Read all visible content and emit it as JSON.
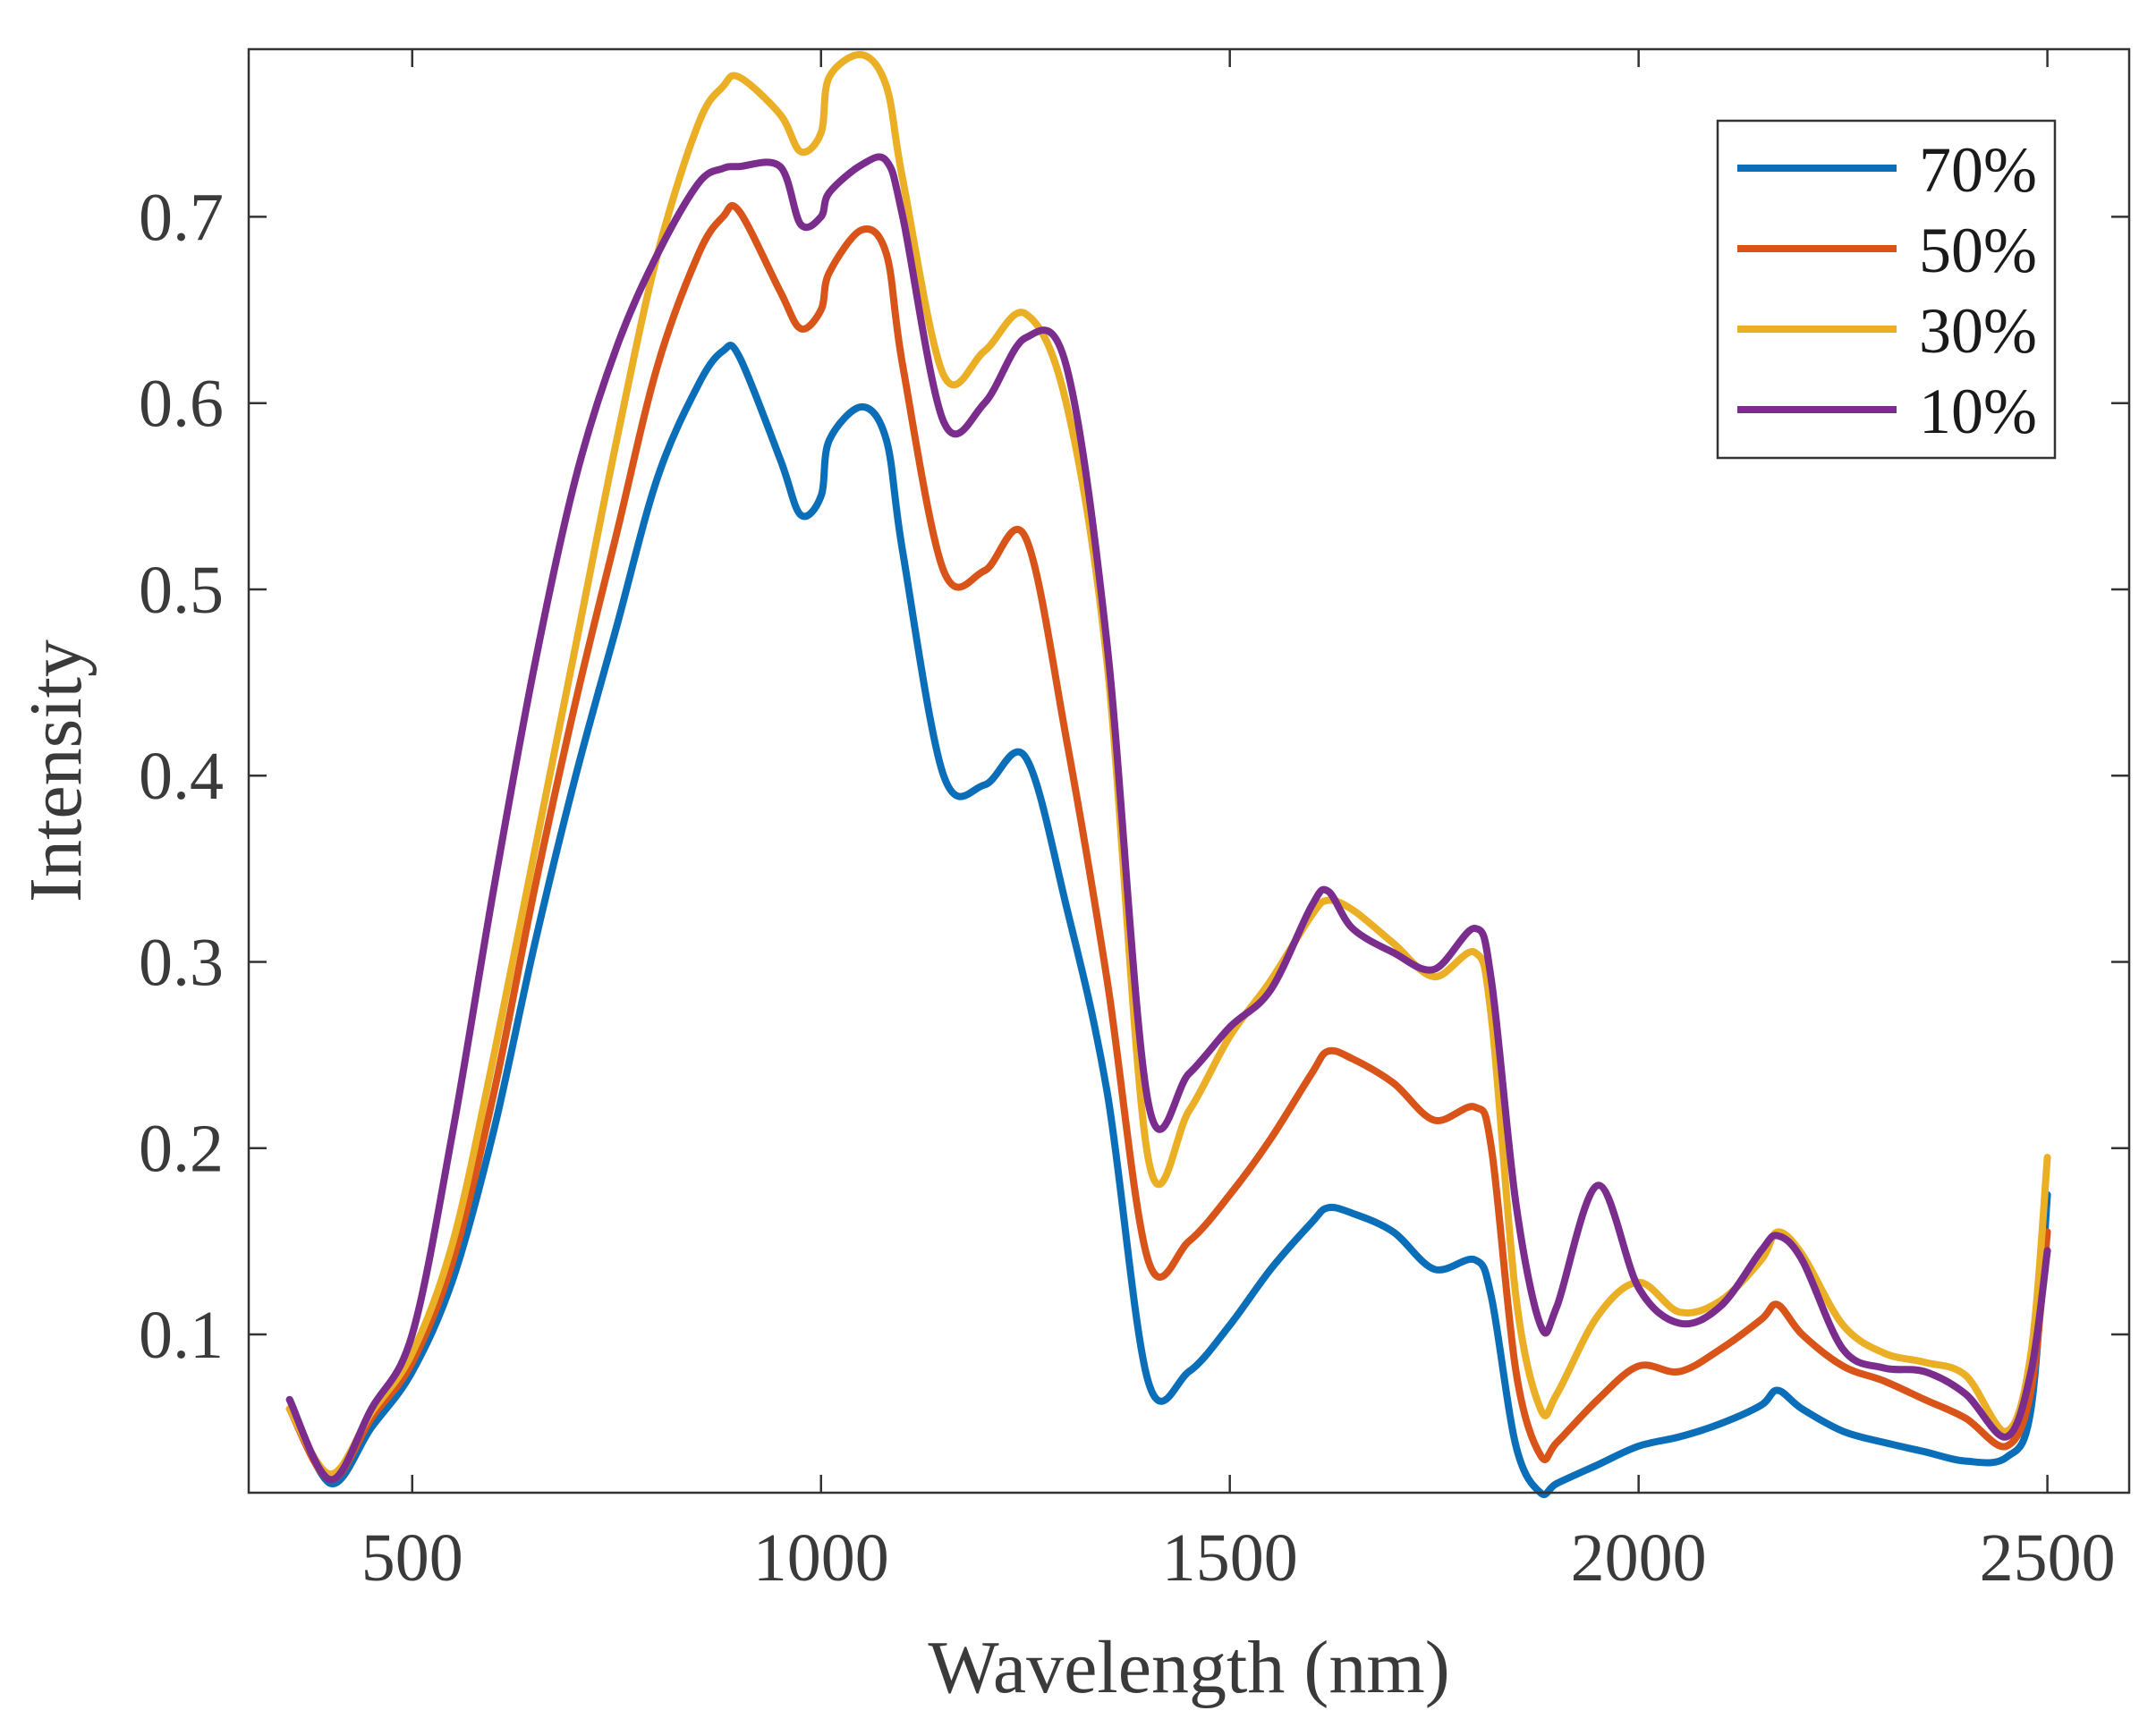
{
  "chart_data": {
    "type": "line",
    "title": "",
    "xlabel": "Wavelength (nm)",
    "ylabel": "Intensity",
    "xlim": [
      300,
      2600
    ],
    "ylim": [
      0.015,
      0.79
    ],
    "xticks": [
      500,
      1000,
      1500,
      2000,
      2500
    ],
    "xtick_labels": [
      "500",
      "1000",
      "1500",
      "2000",
      "2500"
    ],
    "yticks": [
      0.1,
      0.2,
      0.3,
      0.4,
      0.5,
      0.6,
      0.7
    ],
    "ytick_labels": [
      "0.1",
      "0.2",
      "0.3",
      "0.4",
      "0.5",
      "0.6",
      "0.7"
    ],
    "grid": false,
    "legend_position": "top-right",
    "x": [
      350,
      400,
      450,
      500,
      550,
      600,
      650,
      700,
      750,
      800,
      850,
      880,
      900,
      950,
      975,
      1000,
      1010,
      1050,
      1080,
      1100,
      1150,
      1200,
      1250,
      1300,
      1350,
      1400,
      1450,
      1500,
      1550,
      1600,
      1620,
      1650,
      1700,
      1750,
      1800,
      1820,
      1850,
      1880,
      1900,
      1950,
      2000,
      2050,
      2100,
      2150,
      2170,
      2200,
      2250,
      2300,
      2350,
      2400,
      2450,
      2480,
      2500
    ],
    "series": [
      {
        "name": "70%",
        "color": "#0b6eb8",
        "values": [
          0.065,
          0.02,
          0.05,
          0.08,
          0.13,
          0.21,
          0.31,
          0.4,
          0.48,
          0.56,
          0.61,
          0.628,
          0.625,
          0.57,
          0.54,
          0.55,
          0.58,
          0.598,
          0.58,
          0.52,
          0.4,
          0.395,
          0.41,
          0.33,
          0.23,
          0.075,
          0.08,
          0.105,
          0.135,
          0.16,
          0.168,
          0.165,
          0.155,
          0.135,
          0.14,
          0.12,
          0.04,
          0.015,
          0.02,
          0.03,
          0.04,
          0.045,
          0.052,
          0.062,
          0.07,
          0.06,
          0.048,
          0.042,
          0.037,
          0.032,
          0.034,
          0.06,
          0.175
        ]
      },
      {
        "name": "50%",
        "color": "#d95419",
        "values": [
          0.06,
          0.022,
          0.055,
          0.085,
          0.14,
          0.23,
          0.34,
          0.44,
          0.53,
          0.62,
          0.68,
          0.7,
          0.703,
          0.66,
          0.64,
          0.65,
          0.67,
          0.693,
          0.68,
          0.62,
          0.51,
          0.51,
          0.528,
          0.42,
          0.29,
          0.14,
          0.15,
          0.175,
          0.205,
          0.24,
          0.252,
          0.248,
          0.235,
          0.215,
          0.222,
          0.2,
          0.08,
          0.035,
          0.042,
          0.065,
          0.083,
          0.08,
          0.092,
          0.108,
          0.116,
          0.1,
          0.083,
          0.075,
          0.065,
          0.055,
          0.04,
          0.07,
          0.155
        ]
      },
      {
        "name": "30%",
        "color": "#eaaf25",
        "values": [
          0.06,
          0.025,
          0.058,
          0.09,
          0.15,
          0.25,
          0.36,
          0.47,
          0.58,
          0.68,
          0.75,
          0.77,
          0.775,
          0.755,
          0.735,
          0.745,
          0.775,
          0.787,
          0.77,
          0.72,
          0.615,
          0.628,
          0.648,
          0.6,
          0.46,
          0.195,
          0.22,
          0.26,
          0.29,
          0.325,
          0.333,
          0.328,
          0.31,
          0.292,
          0.305,
          0.27,
          0.12,
          0.06,
          0.068,
          0.11,
          0.128,
          0.112,
          0.118,
          0.14,
          0.155,
          0.143,
          0.105,
          0.09,
          0.085,
          0.078,
          0.048,
          0.09,
          0.195
        ]
      },
      {
        "name": "10%",
        "color": "#7b2d8e",
        "values": [
          0.065,
          0.022,
          0.06,
          0.1,
          0.21,
          0.34,
          0.46,
          0.56,
          0.63,
          0.68,
          0.718,
          0.726,
          0.727,
          0.727,
          0.696,
          0.7,
          0.713,
          0.728,
          0.73,
          0.7,
          0.59,
          0.6,
          0.635,
          0.62,
          0.47,
          0.225,
          0.24,
          0.265,
          0.285,
          0.33,
          0.338,
          0.318,
          0.305,
          0.296,
          0.318,
          0.29,
          0.17,
          0.105,
          0.115,
          0.18,
          0.125,
          0.106,
          0.115,
          0.145,
          0.153,
          0.14,
          0.092,
          0.082,
          0.08,
          0.068,
          0.045,
          0.08,
          0.145
        ]
      }
    ]
  }
}
